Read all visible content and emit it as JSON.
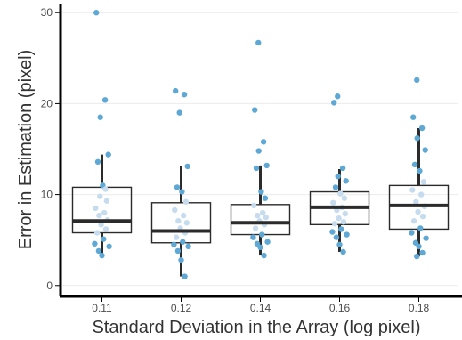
{
  "chart_data": {
    "type": "boxplot",
    "xlabel": "Standard Deviation in the Array (log pixel)",
    "ylabel": "Error in Estimation (pixel)",
    "categories": [
      "0.11",
      "0.12",
      "0.14",
      "0.16",
      "0.18"
    ],
    "ylim": [
      -1,
      31
    ],
    "y_ticks": [
      0,
      10,
      20,
      30
    ],
    "grid": "horizontal",
    "boxes": [
      {
        "category": "0.11",
        "lower_whisker": 3.3,
        "q1": 5.8,
        "median": 7.1,
        "q3": 10.8,
        "upper_whisker": 14.4
      },
      {
        "category": "0.12",
        "lower_whisker": 1.0,
        "q1": 4.7,
        "median": 6.0,
        "q3": 9.1,
        "upper_whisker": 13.1
      },
      {
        "category": "0.14",
        "lower_whisker": 3.3,
        "q1": 5.6,
        "median": 6.9,
        "q3": 8.9,
        "upper_whisker": 13.2
      },
      {
        "category": "0.16",
        "lower_whisker": 3.7,
        "q1": 6.7,
        "median": 8.6,
        "q3": 10.3,
        "upper_whisker": 12.8
      },
      {
        "category": "0.18",
        "lower_whisker": 3.2,
        "q1": 6.2,
        "median": 8.8,
        "q3": 11.0,
        "upper_whisker": 17.3
      }
    ],
    "points": [
      [
        0,
        30.0,
        0
      ],
      [
        0,
        20.4,
        0
      ],
      [
        0,
        18.5,
        0
      ],
      [
        0,
        14.4,
        0
      ],
      [
        0,
        13.6,
        0
      ],
      [
        0,
        11.0,
        0
      ],
      [
        0,
        9.3,
        1
      ],
      [
        0,
        8.5,
        1
      ],
      [
        0,
        8.0,
        1
      ],
      [
        0,
        7.7,
        1
      ],
      [
        0,
        7.2,
        1
      ],
      [
        0,
        6.7,
        1
      ],
      [
        0,
        6.2,
        1
      ],
      [
        0,
        5.8,
        1
      ],
      [
        0,
        5.1,
        0
      ],
      [
        0,
        4.6,
        0
      ],
      [
        0,
        4.3,
        0
      ],
      [
        0,
        3.8,
        0
      ],
      [
        0,
        3.3,
        0
      ],
      [
        0,
        10.6,
        1
      ],
      [
        0,
        9.8,
        1
      ],
      [
        1,
        21.4,
        0
      ],
      [
        1,
        21.0,
        0
      ],
      [
        1,
        19.0,
        0
      ],
      [
        1,
        13.1,
        0
      ],
      [
        1,
        10.8,
        0
      ],
      [
        1,
        10.3,
        0
      ],
      [
        1,
        9.2,
        1
      ],
      [
        1,
        8.3,
        1
      ],
      [
        1,
        7.7,
        1
      ],
      [
        1,
        7.1,
        1
      ],
      [
        1,
        6.9,
        1
      ],
      [
        1,
        6.3,
        1
      ],
      [
        1,
        5.8,
        1
      ],
      [
        1,
        5.3,
        1
      ],
      [
        1,
        4.8,
        0
      ],
      [
        1,
        4.5,
        0
      ],
      [
        1,
        4.3,
        0
      ],
      [
        1,
        3.8,
        0
      ],
      [
        1,
        2.8,
        0
      ],
      [
        1,
        1.0,
        0
      ],
      [
        2,
        26.7,
        0
      ],
      [
        2,
        19.3,
        0
      ],
      [
        2,
        15.8,
        0
      ],
      [
        2,
        14.8,
        0
      ],
      [
        2,
        13.2,
        0
      ],
      [
        2,
        12.9,
        0
      ],
      [
        2,
        10.3,
        0
      ],
      [
        2,
        9.6,
        0
      ],
      [
        2,
        8.8,
        1
      ],
      [
        2,
        8.0,
        1
      ],
      [
        2,
        7.7,
        1
      ],
      [
        2,
        7.5,
        1
      ],
      [
        2,
        7.1,
        1
      ],
      [
        2,
        6.7,
        1
      ],
      [
        2,
        6.3,
        1
      ],
      [
        2,
        5.6,
        0
      ],
      [
        2,
        5.3,
        0
      ],
      [
        2,
        4.8,
        0
      ],
      [
        2,
        4.6,
        0
      ],
      [
        2,
        4.2,
        0
      ],
      [
        2,
        3.3,
        0
      ],
      [
        3,
        20.8,
        0
      ],
      [
        3,
        20.1,
        0
      ],
      [
        3,
        12.9,
        0
      ],
      [
        3,
        12.0,
        0
      ],
      [
        3,
        11.5,
        0
      ],
      [
        3,
        10.8,
        0
      ],
      [
        3,
        10.1,
        1
      ],
      [
        3,
        9.6,
        1
      ],
      [
        3,
        9.1,
        1
      ],
      [
        3,
        8.6,
        1
      ],
      [
        3,
        8.3,
        1
      ],
      [
        3,
        7.9,
        1
      ],
      [
        3,
        7.4,
        1
      ],
      [
        3,
        7.0,
        1
      ],
      [
        3,
        6.8,
        1
      ],
      [
        3,
        6.2,
        0
      ],
      [
        3,
        5.9,
        0
      ],
      [
        3,
        5.6,
        0
      ],
      [
        3,
        5.3,
        0
      ],
      [
        3,
        4.5,
        0
      ],
      [
        3,
        3.7,
        0
      ],
      [
        4,
        22.6,
        0
      ],
      [
        4,
        18.5,
        0
      ],
      [
        4,
        17.3,
        0
      ],
      [
        4,
        16.2,
        0
      ],
      [
        4,
        14.9,
        0
      ],
      [
        4,
        13.3,
        0
      ],
      [
        4,
        12.6,
        0
      ],
      [
        4,
        11.4,
        1
      ],
      [
        4,
        10.5,
        1
      ],
      [
        4,
        10.0,
        1
      ],
      [
        4,
        9.2,
        1
      ],
      [
        4,
        8.7,
        1
      ],
      [
        4,
        8.1,
        1
      ],
      [
        4,
        7.6,
        1
      ],
      [
        4,
        7.1,
        1
      ],
      [
        4,
        6.3,
        0
      ],
      [
        4,
        5.8,
        0
      ],
      [
        4,
        5.2,
        0
      ],
      [
        4,
        4.7,
        0
      ],
      [
        4,
        4.3,
        0
      ],
      [
        4,
        3.6,
        0
      ],
      [
        4,
        3.2,
        0
      ]
    ],
    "colors": {
      "point_dark": "#5ea8d6",
      "point_light": "#c6dcee",
      "box": "#2b2b2b",
      "grid": "#ebebeb",
      "axis": "#000000"
    }
  }
}
